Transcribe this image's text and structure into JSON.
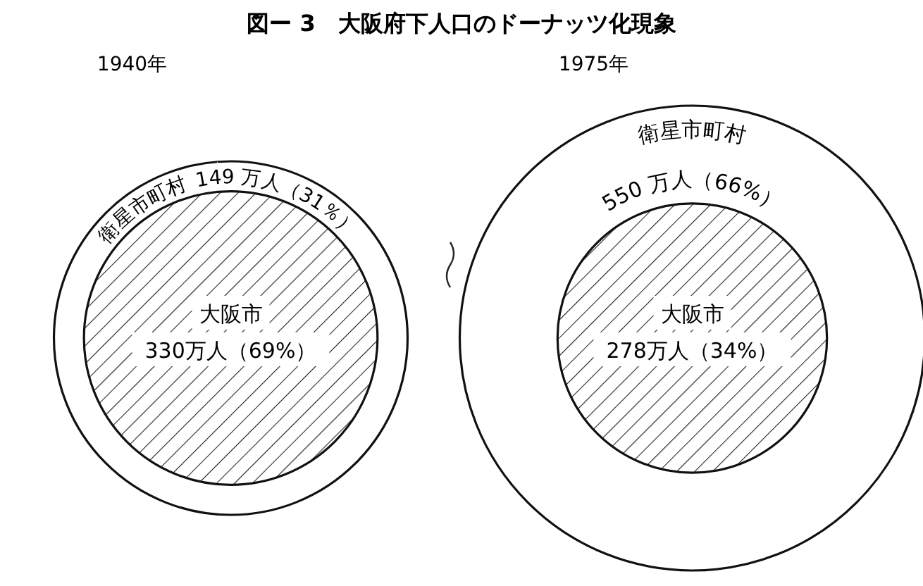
{
  "chart_data": [
    {
      "type": "other",
      "title": "図ー 3　大阪府下人口のドーナッツ化現象",
      "subtitle": "1940年",
      "categories": [
        "衛星市町村",
        "大阪市"
      ],
      "values": [
        149,
        330
      ],
      "value_labels": [
        "149 万人（31％）",
        "330万人（69%）"
      ]
    },
    {
      "type": "other",
      "subtitle": "1975年",
      "categories": [
        "衛星市町村",
        "大阪市"
      ],
      "values": [
        550,
        278
      ],
      "value_labels": [
        "550 万人（66%）",
        "278万人（34%）"
      ]
    }
  ]
}
